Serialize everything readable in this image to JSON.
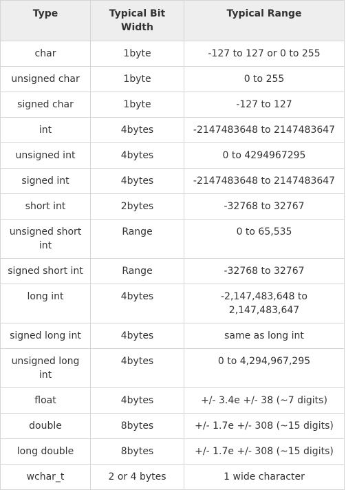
{
  "table": {
    "headers": [
      "Type",
      "Typical Bit Width",
      "Typical Range"
    ],
    "rows": [
      [
        "char",
        "1byte",
        "-127 to 127 or 0 to 255"
      ],
      [
        "unsigned char",
        "1byte",
        "0 to 255"
      ],
      [
        "signed char",
        "1byte",
        "-127 to 127"
      ],
      [
        "int",
        "4bytes",
        "-2147483648 to 2147483647"
      ],
      [
        "unsigned int",
        "4bytes",
        "0 to 4294967295"
      ],
      [
        "signed int",
        "4bytes",
        "-2147483648 to 2147483647"
      ],
      [
        "short int",
        "2bytes",
        "-32768 to 32767"
      ],
      [
        "unsigned short int",
        "Range",
        "0 to 65,535"
      ],
      [
        "signed short int",
        "Range",
        "-32768 to 32767"
      ],
      [
        "long int",
        "4bytes",
        "-2,147,483,648 to 2,147,483,647"
      ],
      [
        "signed long int",
        "4bytes",
        "same as long int"
      ],
      [
        "unsigned long int",
        "4bytes",
        "0 to 4,294,967,295"
      ],
      [
        "float",
        "4bytes",
        "+/- 3.4e +/- 38 (~7 digits)"
      ],
      [
        "double",
        "8bytes",
        "+/- 1.7e +/- 308 (~15 digits)"
      ],
      [
        "long double",
        "8bytes",
        "+/- 1.7e +/- 308 (~15 digits)"
      ],
      [
        "wchar_t",
        "2 or 4 bytes",
        "1 wide character"
      ]
    ]
  }
}
